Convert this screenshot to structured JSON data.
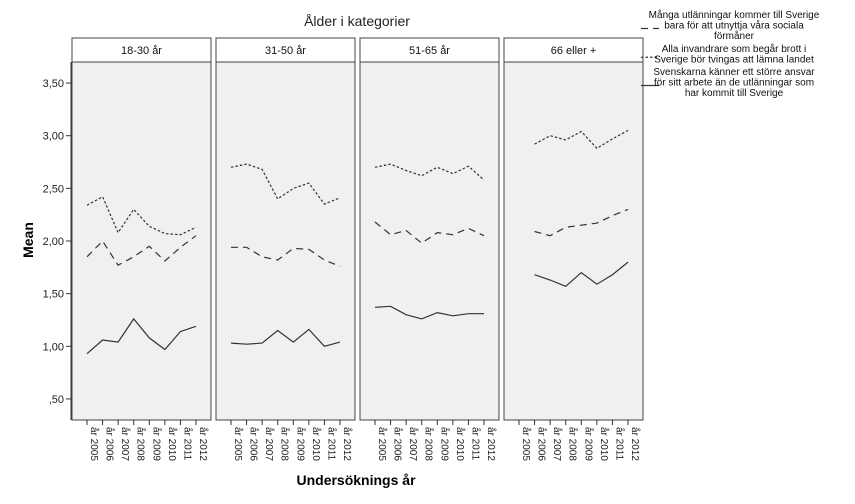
{
  "chart_data": {
    "type": "line",
    "title": "Ålder i kategorier",
    "xlabel": "Undersöknings år",
    "ylabel": "Mean",
    "ylim": [
      0.3,
      3.7
    ],
    "yticks": [
      0.5,
      1.0,
      1.5,
      2.0,
      2.5,
      3.0,
      3.5
    ],
    "ytick_labels": [
      ",50",
      "1,00",
      "1,50",
      "2,00",
      "2,50",
      "3,00",
      "3,50"
    ],
    "categories": [
      "år 2005",
      "år 2006",
      "år 2007",
      "år 2008",
      "år 2009",
      "år 2010",
      "år 2011",
      "år 2012"
    ],
    "grid": false,
    "legend_position": "top-right",
    "background_color": "#f0f0f0",
    "line_color": "#333333",
    "series_defs": [
      {
        "name": "Många utlänningar kommer till Sverige bara för att utnyttja våra sociala förmåner",
        "dash": "dashed"
      },
      {
        "name": "Alla invandrare som begår brott i Sverige bör tvingas att lämna landet",
        "dash": "dotted"
      },
      {
        "name": "Svenskarna känner ett större ansvar för sitt arbete än de utlänningar som har kommit till Sverige",
        "dash": "solid"
      }
    ],
    "panels": [
      {
        "label": "18-30 år",
        "series": [
          [
            1.85,
            2.0,
            1.77,
            1.85,
            1.95,
            1.81,
            1.94,
            2.05
          ],
          [
            2.34,
            2.42,
            2.08,
            2.3,
            2.14,
            2.07,
            2.06,
            2.13
          ],
          [
            0.93,
            1.06,
            1.04,
            1.26,
            1.08,
            0.97,
            1.14,
            1.19
          ]
        ]
      },
      {
        "label": "31-50 år",
        "series": [
          [
            1.94,
            1.94,
            1.85,
            1.82,
            1.93,
            1.92,
            1.82,
            1.76
          ],
          [
            2.7,
            2.73,
            2.68,
            2.4,
            2.5,
            2.55,
            2.35,
            2.41
          ],
          [
            1.03,
            1.02,
            1.03,
            1.15,
            1.04,
            1.16,
            1.0,
            1.04
          ]
        ]
      },
      {
        "label": "51-65 år",
        "series": [
          [
            2.18,
            2.06,
            2.1,
            1.98,
            2.08,
            2.06,
            2.12,
            2.05
          ],
          [
            2.7,
            2.73,
            2.67,
            2.62,
            2.7,
            2.64,
            2.71,
            2.58
          ],
          [
            1.37,
            1.38,
            1.3,
            1.26,
            1.32,
            1.29,
            1.31,
            1.31
          ]
        ]
      },
      {
        "label": "66 eller +",
        "series": [
          [
            null,
            2.09,
            2.05,
            2.13,
            2.15,
            2.17,
            2.24,
            2.3
          ],
          [
            null,
            2.92,
            3.0,
            2.96,
            3.04,
            2.88,
            2.97,
            3.05
          ],
          [
            null,
            1.68,
            1.63,
            1.57,
            1.7,
            1.59,
            1.68,
            1.8
          ]
        ]
      }
    ]
  }
}
